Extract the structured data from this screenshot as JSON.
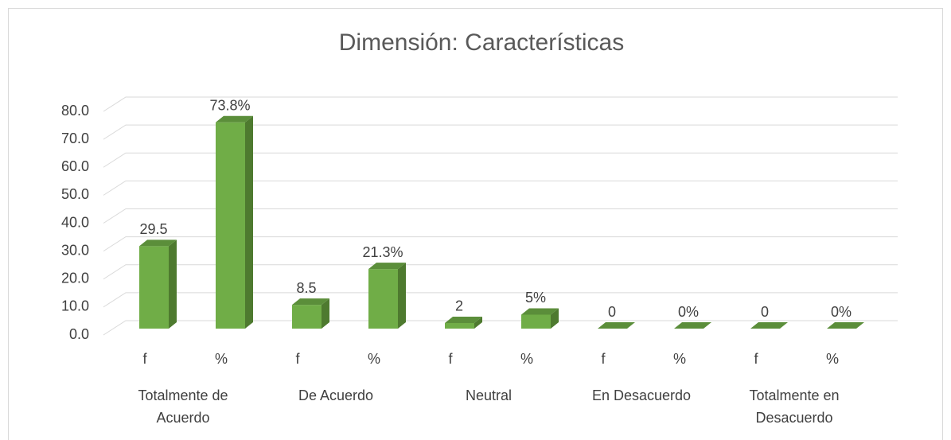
{
  "chart_data": {
    "type": "bar3d",
    "title": "Dimensión: Características",
    "categories": [
      "f",
      "%",
      "f",
      "%",
      "f",
      "%",
      "f",
      "%",
      "f",
      "%"
    ],
    "groups": [
      "Totalmente de Acuerdo",
      "De Acuerdo",
      "Neutral",
      "En Desacuerdo",
      "Totalmente en Desacuerdo"
    ],
    "values": [
      29.5,
      73.8,
      8.5,
      21.3,
      2,
      5,
      0,
      0,
      0,
      0
    ],
    "value_labels": [
      "29.5",
      "73.8%",
      "8.5",
      "21.3%",
      "2",
      "5%",
      "0",
      "0%",
      "0",
      "0%"
    ],
    "color": "#70ad47",
    "ylim": [
      0,
      80
    ],
    "yticks": [
      {
        "value": 0,
        "label": "0.0"
      },
      {
        "value": 10,
        "label": "10.0"
      },
      {
        "value": 20,
        "label": "20.0"
      },
      {
        "value": 30,
        "label": "30.0"
      },
      {
        "value": 40,
        "label": "40.0"
      },
      {
        "value": 50,
        "label": "50.0"
      },
      {
        "value": 60,
        "label": "60.0"
      },
      {
        "value": 70,
        "label": "70.0"
      },
      {
        "value": 80,
        "label": "80.0"
      }
    ],
    "grid": true
  }
}
